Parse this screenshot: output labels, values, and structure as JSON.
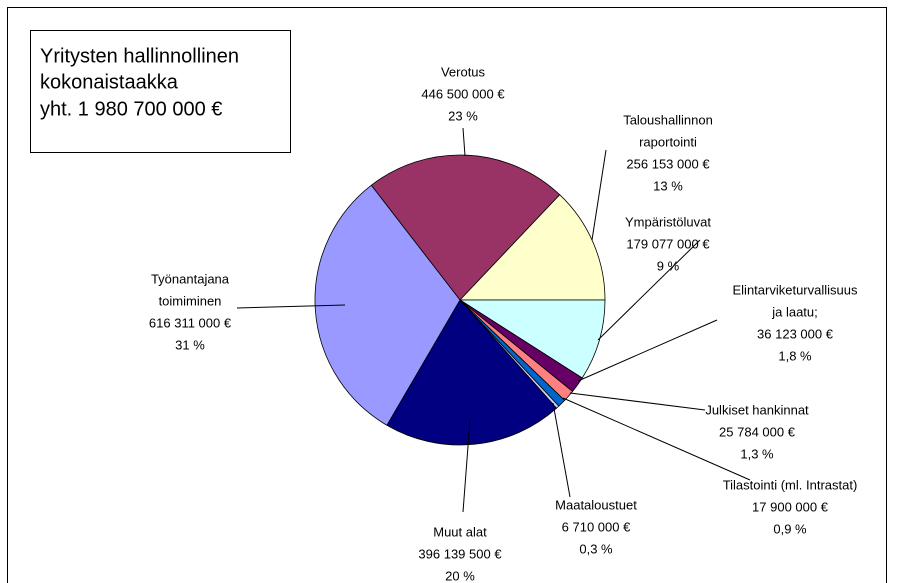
{
  "chart_data": {
    "type": "pie",
    "title": [
      "Yritysten hallinnollinen",
      "kokonaistaakka",
      "yht. 1 980 700 000 €"
    ],
    "categories": [
      [
        "Verotus"
      ],
      [
        "Taloushallinnon",
        "raportointi"
      ],
      [
        "Ympäristöluvat"
      ],
      [
        "Elintarviketurvallisuus",
        "ja laatu;"
      ],
      [
        "Julkiset hankinnat"
      ],
      [
        "Tilastointi (ml. Intrastat)"
      ],
      [
        "Maataloustuet"
      ],
      [
        "Muut alat"
      ],
      [
        "Työnantajana",
        "toimiminen"
      ]
    ],
    "values": [
      446500000,
      256153000,
      179077000,
      36123000,
      25784000,
      17900000,
      6710000,
      396139500,
      616311000
    ],
    "value_labels": [
      "446 500 000 €",
      "256 153 000 €",
      "179 077 000 €",
      "36 123 000 €",
      "25 784 000 €",
      "17 900 000 €",
      "6 710 000 €",
      "396 139 500 €",
      "616 311 000 €"
    ],
    "percents": [
      23,
      13,
      9,
      1.8,
      1.3,
      0.9,
      0.3,
      20,
      31
    ],
    "percent_labels": [
      "23 %",
      "13 %",
      "9 %",
      "1,8 %",
      "1,3 %",
      "0,9 %",
      "0,3 %",
      "20 %",
      "31 %"
    ],
    "colors": [
      "#993366",
      "#FFFFCC",
      "#CCFFFF",
      "#660066",
      "#FF8080",
      "#0066CC",
      "#CCCCFF",
      "#000080",
      "#9999FF"
    ]
  }
}
